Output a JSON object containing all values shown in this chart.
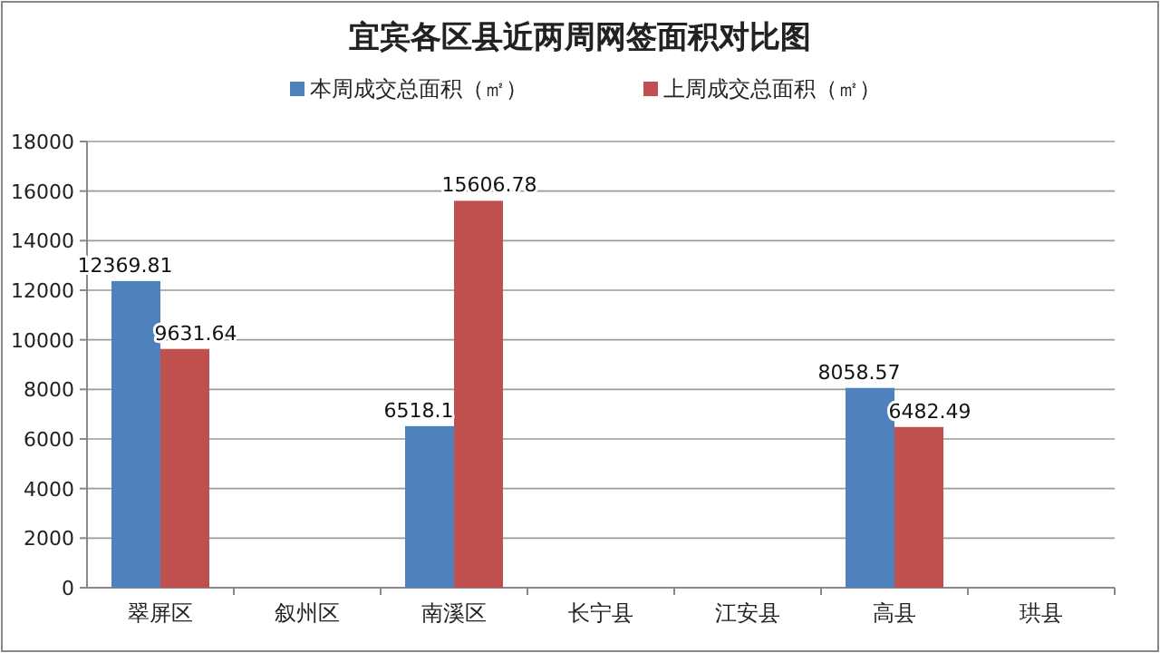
{
  "chart_data": {
    "type": "bar",
    "title": "宜宾各区县近两周网签面积对比图",
    "categories": [
      "翠屏区",
      "叙州区",
      "南溪区",
      "长宁县",
      "江安县",
      "高县",
      "珙县"
    ],
    "series": [
      {
        "name": "本周成交总面积（㎡）",
        "color": "#4f81bd",
        "values": [
          12369.81,
          null,
          6518.1,
          null,
          null,
          8058.57,
          null
        ]
      },
      {
        "name": "上周成交总面积（㎡）",
        "color": "#c0504d",
        "values": [
          9631.64,
          null,
          15606.78,
          null,
          null,
          6482.49,
          null
        ]
      }
    ],
    "ylim": [
      0,
      18000
    ],
    "yticks": [
      0,
      2000,
      4000,
      6000,
      8000,
      10000,
      12000,
      14000,
      16000,
      18000
    ],
    "grid": "y",
    "legend": "top",
    "data_labels": true
  }
}
